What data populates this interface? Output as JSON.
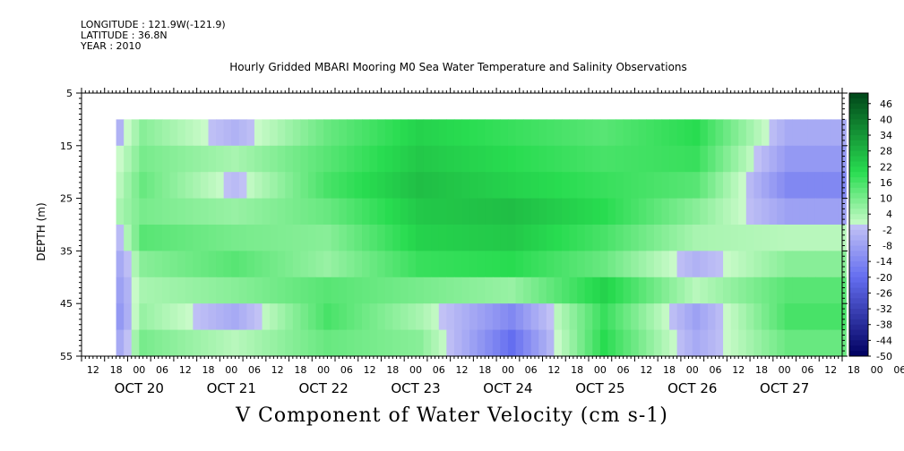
{
  "header": {
    "longitude": "LONGITUDE : 121.9W(-121.9)",
    "latitude": "LATITUDE : 36.8N",
    "year": "YEAR : 2010"
  },
  "chart_data": {
    "type": "heatmap",
    "title": "Hourly Gridded MBARI Mooring M0 Sea Water Temperature and Salinity Observations",
    "xlabel": "V Component of Water Velocity (cm s-1)",
    "ylabel": "DEPTH (m)",
    "x_start": "2010-10-19 09:00",
    "x_end": "2010-10-27 15:00",
    "data_start": "2010-10-19 18:00",
    "xlim_hours": [
      0,
      198
    ],
    "ylim": [
      5,
      55
    ],
    "y_inverted": true,
    "y_ticks": [
      5,
      15,
      25,
      35,
      45,
      55
    ],
    "hour_tick_labels": [
      "12",
      "18",
      "00",
      "06",
      "12",
      "18",
      "00",
      "06",
      "12",
      "18",
      "00",
      "06",
      "12",
      "18",
      "00",
      "06",
      "12",
      "18",
      "00",
      "06",
      "12",
      "18",
      "00",
      "06",
      "12",
      "18",
      "00",
      "06",
      "12",
      "18",
      "00",
      "06",
      "12",
      "18",
      "00",
      "06"
    ],
    "date_labels": [
      "OCT 20",
      "OCT 21",
      "OCT 22",
      "OCT 23",
      "OCT 24",
      "OCT 25",
      "OCT 26",
      "OCT 27"
    ],
    "depths": [
      10,
      15,
      20,
      25,
      30,
      35,
      40,
      45,
      50,
      55
    ],
    "profile_days": [
      "OCT 19 18:00",
      "OCT 20",
      "OCT 21",
      "OCT 22",
      "OCT 23",
      "OCT 24",
      "OCT 25",
      "OCT 26",
      "OCT 27"
    ],
    "values_by_depth": [
      [
        -4,
        8,
        -4,
        12,
        22,
        18,
        14,
        20,
        -6
      ],
      [
        0,
        10,
        4,
        14,
        24,
        20,
        16,
        18,
        -10
      ],
      [
        2,
        12,
        -2,
        16,
        26,
        22,
        18,
        14,
        -14
      ],
      [
        4,
        10,
        6,
        12,
        24,
        26,
        20,
        8,
        -8
      ],
      [
        -2,
        14,
        10,
        8,
        22,
        24,
        16,
        4,
        2
      ],
      [
        -6,
        8,
        14,
        6,
        18,
        20,
        12,
        -4,
        8
      ],
      [
        -8,
        4,
        8,
        14,
        10,
        6,
        22,
        2,
        14
      ],
      [
        -10,
        6,
        -6,
        16,
        4,
        -14,
        18,
        -8,
        16
      ],
      [
        -6,
        10,
        2,
        12,
        8,
        -20,
        20,
        -6,
        12
      ],
      [
        -4,
        12,
        4,
        10,
        14,
        -16,
        22,
        -10,
        10
      ]
    ],
    "colorbar_labels": [
      46,
      40,
      34,
      28,
      22,
      16,
      10,
      4,
      -2,
      -8,
      -14,
      -20,
      -26,
      -32,
      -38,
      -44,
      -50
    ],
    "colorbar_range": [
      -50,
      50
    ]
  }
}
